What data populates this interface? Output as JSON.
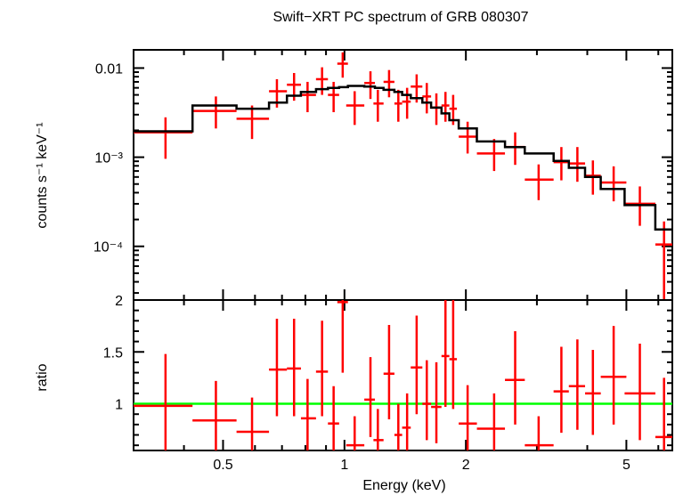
{
  "chart_data": {
    "title": "Swift−XRT PC spectrum of GRB 080307",
    "xlabel": "Energy (keV)",
    "x_scale": "log",
    "xlim": [
      0.3,
      6.5
    ],
    "x_ticks": [
      {
        "value": 0.5,
        "label": "0.5"
      },
      {
        "value": 1,
        "label": "1"
      },
      {
        "value": 2,
        "label": "2"
      },
      {
        "value": 5,
        "label": "5"
      }
    ],
    "colors": {
      "data": "#ff0000",
      "model": "#000000",
      "unity": "#00ff00",
      "axes": "#000000"
    },
    "panels": [
      {
        "name": "spectrum",
        "type": "scatter",
        "ylabel": "counts s⁻¹ keV⁻¹",
        "y_scale": "log",
        "ylim": [
          2.5e-05,
          0.016
        ],
        "y_ticks": [
          {
            "value": 0.01,
            "label": "0.01"
          },
          {
            "value": 0.001,
            "label": "10⁻³"
          },
          {
            "value": 0.0001,
            "label": "10⁻⁴"
          }
        ],
        "series": [
          {
            "kind": "data-with-errors",
            "points": [
              {
                "x": 0.36,
                "xlo": 0.3,
                "xhi": 0.42,
                "y": 0.0019,
                "ylo": 0.00096,
                "yhi": 0.0028
              },
              {
                "x": 0.48,
                "xlo": 0.42,
                "xhi": 0.54,
                "y": 0.0033,
                "ylo": 0.0021,
                "yhi": 0.0048
              },
              {
                "x": 0.59,
                "xlo": 0.54,
                "xhi": 0.65,
                "y": 0.0027,
                "ylo": 0.0016,
                "yhi": 0.0038
              },
              {
                "x": 0.68,
                "xlo": 0.65,
                "xhi": 0.72,
                "y": 0.0055,
                "ylo": 0.0036,
                "yhi": 0.0075
              },
              {
                "x": 0.75,
                "xlo": 0.72,
                "xhi": 0.78,
                "y": 0.0065,
                "ylo": 0.0043,
                "yhi": 0.0088
              },
              {
                "x": 0.81,
                "xlo": 0.78,
                "xhi": 0.85,
                "y": 0.005,
                "ylo": 0.0032,
                "yhi": 0.007
              },
              {
                "x": 0.88,
                "xlo": 0.85,
                "xhi": 0.91,
                "y": 0.0075,
                "ylo": 0.005,
                "yhi": 0.0102
              },
              {
                "x": 0.94,
                "xlo": 0.91,
                "xhi": 0.97,
                "y": 0.005,
                "ylo": 0.0032,
                "yhi": 0.007
              },
              {
                "x": 0.99,
                "xlo": 0.96,
                "xhi": 1.02,
                "y": 0.0112,
                "ylo": 0.0078,
                "yhi": 0.015
              },
              {
                "x": 1.06,
                "xlo": 1.01,
                "xhi": 1.12,
                "y": 0.0038,
                "ylo": 0.0023,
                "yhi": 0.0055
              },
              {
                "x": 1.16,
                "xlo": 1.12,
                "xhi": 1.19,
                "y": 0.0068,
                "ylo": 0.0045,
                "yhi": 0.0092
              },
              {
                "x": 1.21,
                "xlo": 1.18,
                "xhi": 1.25,
                "y": 0.004,
                "ylo": 0.0025,
                "yhi": 0.0057
              },
              {
                "x": 1.29,
                "xlo": 1.25,
                "xhi": 1.33,
                "y": 0.007,
                "ylo": 0.0047,
                "yhi": 0.0095
              },
              {
                "x": 1.36,
                "xlo": 1.33,
                "xhi": 1.39,
                "y": 0.004,
                "ylo": 0.0025,
                "yhi": 0.0057
              },
              {
                "x": 1.43,
                "xlo": 1.39,
                "xhi": 1.46,
                "y": 0.0042,
                "ylo": 0.0027,
                "yhi": 0.006
              },
              {
                "x": 1.51,
                "xlo": 1.46,
                "xhi": 1.56,
                "y": 0.0062,
                "ylo": 0.0041,
                "yhi": 0.0085
              },
              {
                "x": 1.6,
                "xlo": 1.56,
                "xhi": 1.64,
                "y": 0.0048,
                "ylo": 0.0031,
                "yhi": 0.0068
              },
              {
                "x": 1.69,
                "xlo": 1.64,
                "xhi": 1.74,
                "y": 0.0036,
                "ylo": 0.0023,
                "yhi": 0.0052
              },
              {
                "x": 1.78,
                "xlo": 1.74,
                "xhi": 1.82,
                "y": 0.0038,
                "ylo": 0.0025,
                "yhi": 0.0054
              },
              {
                "x": 1.86,
                "xlo": 1.82,
                "xhi": 1.9,
                "y": 0.0035,
                "ylo": 0.0023,
                "yhi": 0.005
              },
              {
                "x": 2.02,
                "xlo": 1.92,
                "xhi": 2.13,
                "y": 0.0017,
                "ylo": 0.0011,
                "yhi": 0.0025
              },
              {
                "x": 2.35,
                "xlo": 2.13,
                "xhi": 2.5,
                "y": 0.0011,
                "ylo": 0.0007,
                "yhi": 0.0016
              },
              {
                "x": 2.65,
                "xlo": 2.5,
                "xhi": 2.8,
                "y": 0.0013,
                "ylo": 0.00082,
                "yhi": 0.0019
              },
              {
                "x": 3.03,
                "xlo": 2.8,
                "xhi": 3.3,
                "y": 0.00056,
                "ylo": 0.00033,
                "yhi": 0.00083
              },
              {
                "x": 3.45,
                "xlo": 3.3,
                "xhi": 3.6,
                "y": 0.00088,
                "ylo": 0.00055,
                "yhi": 0.0013
              },
              {
                "x": 3.78,
                "xlo": 3.6,
                "xhi": 3.95,
                "y": 0.00085,
                "ylo": 0.00053,
                "yhi": 0.0013
              },
              {
                "x": 4.13,
                "xlo": 3.95,
                "xhi": 4.32,
                "y": 0.00062,
                "ylo": 0.00038,
                "yhi": 0.00092
              },
              {
                "x": 4.65,
                "xlo": 4.32,
                "xhi": 5.0,
                "y": 0.00052,
                "ylo": 0.00032,
                "yhi": 0.00079
              },
              {
                "x": 5.4,
                "xlo": 4.95,
                "xhi": 5.9,
                "y": 0.0003,
                "ylo": 0.00017,
                "yhi": 0.00047
              },
              {
                "x": 6.2,
                "xlo": 5.9,
                "xhi": 6.5,
                "y": 0.000105,
                "ylo": 2.5e-05,
                "yhi": 0.00019
              }
            ]
          },
          {
            "kind": "model-step",
            "edges": [
              0.3,
              0.42,
              0.54,
              0.65,
              0.72,
              0.78,
              0.85,
              0.91,
              0.97,
              1.02,
              1.12,
              1.19,
              1.25,
              1.33,
              1.39,
              1.46,
              1.56,
              1.64,
              1.74,
              1.82,
              1.92,
              2.13,
              2.5,
              2.8,
              3.3,
              3.6,
              3.95,
              4.32,
              4.95,
              5.9,
              6.5
            ],
            "values": [
              0.00195,
              0.0038,
              0.0035,
              0.0041,
              0.0049,
              0.0054,
              0.0058,
              0.006,
              0.0061,
              0.0063,
              0.0062,
              0.006,
              0.0057,
              0.0054,
              0.005,
              0.0046,
              0.0041,
              0.0036,
              0.0031,
              0.0026,
              0.0021,
              0.0015,
              0.0013,
              0.0011,
              0.00091,
              0.00076,
              0.0006,
              0.00044,
              0.00029,
              0.000155
            ]
          }
        ]
      },
      {
        "name": "ratio",
        "type": "scatter",
        "ylabel": "ratio",
        "y_scale": "linear",
        "ylim": [
          0.55,
          2.0
        ],
        "y_ticks": [
          {
            "value": 2,
            "label": "2"
          },
          {
            "value": 1.5,
            "label": "1.5"
          },
          {
            "value": 1,
            "label": "1"
          }
        ],
        "unity_line": 1,
        "series": [
          {
            "kind": "data-with-errors",
            "points": [
              {
                "x": 0.36,
                "xlo": 0.3,
                "xhi": 0.42,
                "y": 0.98,
                "ylo": 0.55,
                "yhi": 1.48
              },
              {
                "x": 0.48,
                "xlo": 0.42,
                "xhi": 0.54,
                "y": 0.84,
                "ylo": 0.55,
                "yhi": 1.22
              },
              {
                "x": 0.59,
                "xlo": 0.54,
                "xhi": 0.65,
                "y": 0.73,
                "ylo": 0.55,
                "yhi": 1.06
              },
              {
                "x": 0.68,
                "xlo": 0.65,
                "xhi": 0.72,
                "y": 1.33,
                "ylo": 0.88,
                "yhi": 1.82
              },
              {
                "x": 0.75,
                "xlo": 0.72,
                "xhi": 0.78,
                "y": 1.34,
                "ylo": 0.88,
                "yhi": 1.82
              },
              {
                "x": 0.81,
                "xlo": 0.78,
                "xhi": 0.85,
                "y": 0.86,
                "ylo": 0.55,
                "yhi": 1.24
              },
              {
                "x": 0.88,
                "xlo": 0.85,
                "xhi": 0.91,
                "y": 1.31,
                "ylo": 0.88,
                "yhi": 1.8
              },
              {
                "x": 0.94,
                "xlo": 0.91,
                "xhi": 0.97,
                "y": 0.81,
                "ylo": 0.55,
                "yhi": 1.17
              },
              {
                "x": 0.99,
                "xlo": 0.96,
                "xhi": 1.02,
                "y": 1.98,
                "ylo": 1.3,
                "yhi": 2.0
              },
              {
                "x": 1.06,
                "xlo": 1.01,
                "xhi": 1.12,
                "y": 0.6,
                "ylo": 0.55,
                "yhi": 0.88
              },
              {
                "x": 1.16,
                "xlo": 1.12,
                "xhi": 1.19,
                "y": 1.04,
                "ylo": 0.68,
                "yhi": 1.45
              },
              {
                "x": 1.21,
                "xlo": 1.18,
                "xhi": 1.25,
                "y": 0.65,
                "ylo": 0.55,
                "yhi": 0.95
              },
              {
                "x": 1.29,
                "xlo": 1.25,
                "xhi": 1.33,
                "y": 1.29,
                "ylo": 0.85,
                "yhi": 1.76
              },
              {
                "x": 1.36,
                "xlo": 1.33,
                "xhi": 1.39,
                "y": 0.7,
                "ylo": 0.55,
                "yhi": 1.0
              },
              {
                "x": 1.43,
                "xlo": 1.39,
                "xhi": 1.46,
                "y": 0.77,
                "ylo": 0.55,
                "yhi": 1.1
              },
              {
                "x": 1.51,
                "xlo": 1.46,
                "xhi": 1.56,
                "y": 1.35,
                "ylo": 0.9,
                "yhi": 1.85
              },
              {
                "x": 1.6,
                "xlo": 1.56,
                "xhi": 1.64,
                "y": 1.0,
                "ylo": 0.65,
                "yhi": 1.42
              },
              {
                "x": 1.69,
                "xlo": 1.64,
                "xhi": 1.74,
                "y": 0.97,
                "ylo": 0.62,
                "yhi": 1.4
              },
              {
                "x": 1.78,
                "xlo": 1.74,
                "xhi": 1.82,
                "y": 1.46,
                "ylo": 0.97,
                "yhi": 2.0
              },
              {
                "x": 1.86,
                "xlo": 1.82,
                "xhi": 1.9,
                "y": 1.43,
                "ylo": 0.95,
                "yhi": 2.0
              },
              {
                "x": 2.02,
                "xlo": 1.92,
                "xhi": 2.13,
                "y": 0.81,
                "ylo": 0.55,
                "yhi": 1.18
              },
              {
                "x": 2.35,
                "xlo": 2.13,
                "xhi": 2.5,
                "y": 0.76,
                "ylo": 0.55,
                "yhi": 1.1
              },
              {
                "x": 2.65,
                "xlo": 2.5,
                "xhi": 2.8,
                "y": 1.23,
                "ylo": 0.8,
                "yhi": 1.7
              },
              {
                "x": 3.03,
                "xlo": 2.8,
                "xhi": 3.3,
                "y": 0.6,
                "ylo": 0.55,
                "yhi": 0.88
              },
              {
                "x": 3.45,
                "xlo": 3.3,
                "xhi": 3.6,
                "y": 1.12,
                "ylo": 0.72,
                "yhi": 1.55
              },
              {
                "x": 3.78,
                "xlo": 3.6,
                "xhi": 3.95,
                "y": 1.17,
                "ylo": 0.75,
                "yhi": 1.62
              },
              {
                "x": 4.13,
                "xlo": 3.95,
                "xhi": 4.32,
                "y": 1.1,
                "ylo": 0.7,
                "yhi": 1.52
              },
              {
                "x": 4.65,
                "xlo": 4.32,
                "xhi": 5.0,
                "y": 1.26,
                "ylo": 0.8,
                "yhi": 1.75
              },
              {
                "x": 5.4,
                "xlo": 4.95,
                "xhi": 5.9,
                "y": 1.1,
                "ylo": 0.65,
                "yhi": 1.58
              },
              {
                "x": 6.2,
                "xlo": 5.9,
                "xhi": 6.5,
                "y": 0.68,
                "ylo": 0.55,
                "yhi": 1.25
              }
            ]
          }
        ]
      }
    ]
  }
}
